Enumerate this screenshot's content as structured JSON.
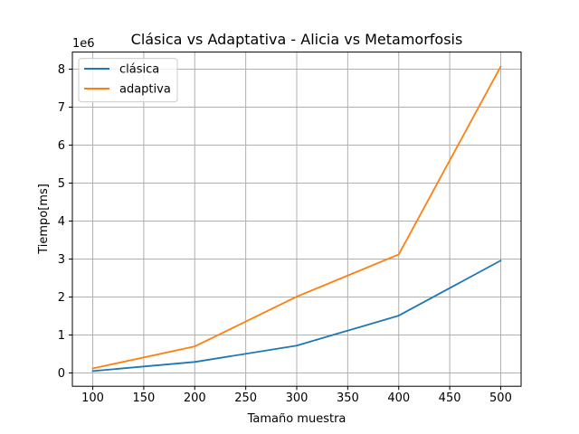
{
  "chart_data": {
    "type": "line",
    "title": "Clásica vs Adaptativa - Alicia vs Metamorfosis",
    "xlabel": "Tamaño muestra",
    "ylabel": "Tiempo[ms]",
    "y_offset_label": "1e6",
    "x": [
      100,
      200,
      300,
      400,
      500
    ],
    "xlim": [
      80,
      520
    ],
    "ylim": [
      -0.35,
      8.45
    ],
    "x_ticks": [
      100,
      150,
      200,
      250,
      300,
      350,
      400,
      450,
      500
    ],
    "x_tick_labels": [
      "100",
      "150",
      "200",
      "250",
      "300",
      "350",
      "400",
      "450",
      "500"
    ],
    "y_ticks": [
      0,
      1,
      2,
      3,
      4,
      5,
      6,
      7,
      8
    ],
    "y_tick_labels": [
      "0",
      "1",
      "2",
      "3",
      "4",
      "5",
      "6",
      "7",
      "8"
    ],
    "grid": true,
    "legend_position": "top-left",
    "series": [
      {
        "name": "clásica",
        "color": "#1f77b4",
        "values": [
          0.05,
          0.29,
          0.72,
          1.51,
          2.96
        ]
      },
      {
        "name": "adaptiva",
        "color": "#ff7f0e",
        "values": [
          0.12,
          0.7,
          2.01,
          3.12,
          8.07
        ]
      }
    ]
  }
}
